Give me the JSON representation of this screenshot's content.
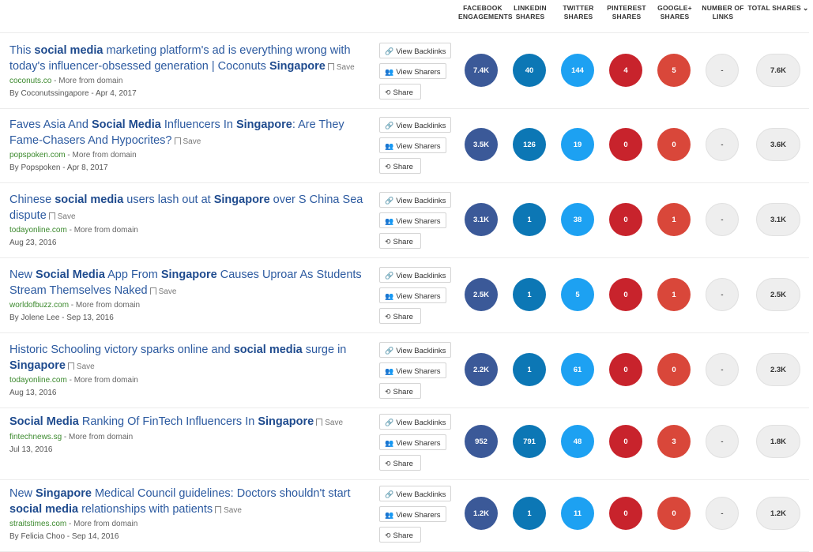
{
  "headers": {
    "facebook": [
      "FACEBOOK",
      "ENGAGEMENTS"
    ],
    "linkedin": [
      "LINKEDIN",
      "SHARES"
    ],
    "twitter": [
      "TWITTER",
      "SHARES"
    ],
    "pinterest": [
      "PINTEREST",
      "SHARES"
    ],
    "googleplus": [
      "GOOGLE+",
      "SHARES"
    ],
    "links": [
      "NUMBER OF",
      "LINKS"
    ],
    "total": "TOTAL SHARES"
  },
  "buttons": {
    "backlinks": "View Backlinks",
    "sharers": "View Sharers",
    "share": "Share",
    "save": "Save",
    "more": "More from domain"
  },
  "colors": {
    "facebook": "#3b5998",
    "linkedin": "#0c77b5",
    "twitter": "#1da1f2",
    "pinterest": "#c8232c",
    "googleplus": "#d9473a",
    "title": "#2c5aa0",
    "domain": "#3c8a2e"
  },
  "articles": [
    {
      "title_parts": [
        {
          "t": "This "
        },
        {
          "t": "social media",
          "b": true
        },
        {
          "t": " marketing platform's ad is everything wrong with today's influencer-obsessed generation | Coconuts "
        },
        {
          "t": "Singapore",
          "b": true
        }
      ],
      "domain": "coconuts.co",
      "meta": "By Coconutssingapore - Apr 4, 2017",
      "stats": {
        "facebook": "7.4K",
        "linkedin": "40",
        "twitter": "144",
        "pinterest": "4",
        "googleplus": "5",
        "links": "-",
        "total": "7.6K"
      }
    },
    {
      "title_parts": [
        {
          "t": "Faves Asia And "
        },
        {
          "t": "Social Media",
          "b": true
        },
        {
          "t": " Influencers In "
        },
        {
          "t": "Singapore",
          "b": true
        },
        {
          "t": ": Are They Fame-Chasers And Hypocrites?"
        }
      ],
      "domain": "popspoken.com",
      "meta": "By Popspoken - Apr 8, 2017",
      "stats": {
        "facebook": "3.5K",
        "linkedin": "126",
        "twitter": "19",
        "pinterest": "0",
        "googleplus": "0",
        "links": "-",
        "total": "3.6K"
      }
    },
    {
      "title_parts": [
        {
          "t": "Chinese "
        },
        {
          "t": "social media",
          "b": true
        },
        {
          "t": " users lash out at "
        },
        {
          "t": "Singapore",
          "b": true
        },
        {
          "t": " over S China Sea dispute"
        }
      ],
      "domain": "todayonline.com",
      "meta": "Aug 23, 2016",
      "stats": {
        "facebook": "3.1K",
        "linkedin": "1",
        "twitter": "38",
        "pinterest": "0",
        "googleplus": "1",
        "links": "-",
        "total": "3.1K"
      }
    },
    {
      "title_parts": [
        {
          "t": "New "
        },
        {
          "t": "Social Media",
          "b": true
        },
        {
          "t": " App From "
        },
        {
          "t": "Singapore",
          "b": true
        },
        {
          "t": " Causes Uproar As Students Stream Themselves Naked"
        }
      ],
      "domain": "worldofbuzz.com",
      "meta": "By Jolene Lee - Sep 13, 2016",
      "stats": {
        "facebook": "2.5K",
        "linkedin": "1",
        "twitter": "5",
        "pinterest": "0",
        "googleplus": "1",
        "links": "-",
        "total": "2.5K"
      }
    },
    {
      "title_parts": [
        {
          "t": "Historic Schooling victory sparks online and "
        },
        {
          "t": "social media",
          "b": true
        },
        {
          "t": " surge in "
        },
        {
          "t": "Singapore",
          "b": true
        }
      ],
      "domain": "todayonline.com",
      "meta": "Aug 13, 2016",
      "stats": {
        "facebook": "2.2K",
        "linkedin": "1",
        "twitter": "61",
        "pinterest": "0",
        "googleplus": "0",
        "links": "-",
        "total": "2.3K"
      }
    },
    {
      "title_parts": [
        {
          "t": "Social Media",
          "b": true
        },
        {
          "t": " Ranking Of FinTech Influencers In "
        },
        {
          "t": "Singapore",
          "b": true
        }
      ],
      "domain": "fintechnews.sg",
      "meta": "Jul 13, 2016",
      "stats": {
        "facebook": "952",
        "linkedin": "791",
        "twitter": "48",
        "pinterest": "0",
        "googleplus": "3",
        "links": "-",
        "total": "1.8K"
      }
    },
    {
      "title_parts": [
        {
          "t": "New "
        },
        {
          "t": "Singapore",
          "b": true
        },
        {
          "t": " Medical Council guidelines: Doctors shouldn't start "
        },
        {
          "t": "social media",
          "b": true
        },
        {
          "t": " relationships with patients"
        }
      ],
      "domain": "straitstimes.com",
      "meta": "By Felicia Choo - Sep 14, 2016",
      "stats": {
        "facebook": "1.2K",
        "linkedin": "1",
        "twitter": "11",
        "pinterest": "0",
        "googleplus": "0",
        "links": "-",
        "total": "1.2K"
      }
    }
  ]
}
